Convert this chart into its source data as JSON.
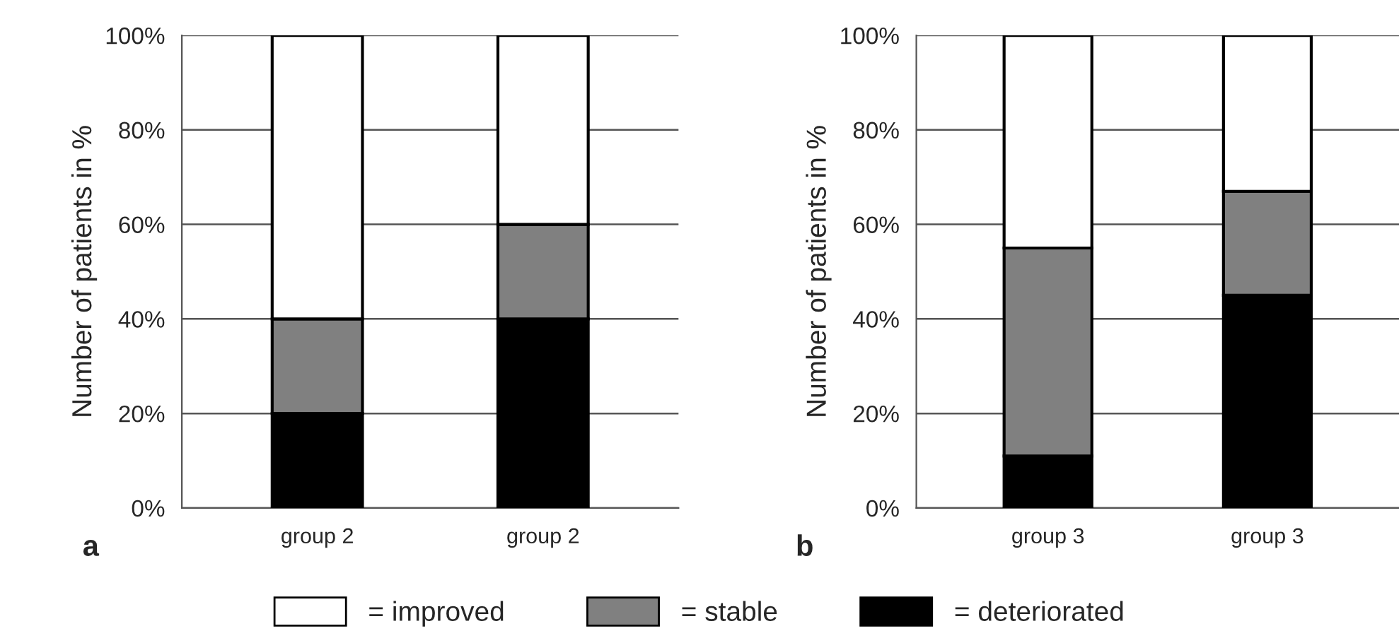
{
  "chart_data": [
    {
      "type": "bar",
      "stacked": true,
      "categories": [
        "group 2",
        "group 2"
      ],
      "ylabel": "Number of patients in %",
      "ylim": [
        0,
        100
      ],
      "yticks": [
        {
          "value": 0,
          "label": "0%"
        },
        {
          "value": 20,
          "label": "20%"
        },
        {
          "value": 40,
          "label": "40%"
        },
        {
          "value": 60,
          "label": "60%"
        },
        {
          "value": 80,
          "label": "80%"
        },
        {
          "value": 100,
          "label": "100%"
        }
      ],
      "grid": "y",
      "annotations": [
        "a"
      ],
      "series": [
        {
          "color": "#000000",
          "values": [
            20,
            40
          ]
        },
        {
          "color": "#808080",
          "values": [
            20,
            20
          ]
        },
        {
          "color": "#ffffff",
          "values": [
            60,
            40
          ]
        }
      ]
    },
    {
      "type": "bar",
      "stacked": true,
      "categories": [
        "group 3",
        "group 3"
      ],
      "ylabel": "Number of patients in %",
      "ylim": [
        0,
        100
      ],
      "yticks": [
        {
          "value": 0,
          "label": "0%"
        },
        {
          "value": 20,
          "label": "20%"
        },
        {
          "value": 40,
          "label": "40%"
        },
        {
          "value": 60,
          "label": "60%"
        },
        {
          "value": 80,
          "label": "80%"
        },
        {
          "value": 100,
          "label": "100%"
        }
      ],
      "grid": "y",
      "legend": "bottom",
      "annotations": [
        "b"
      ],
      "series": [
        {
          "name": "= deteriorated",
          "color": "#000000",
          "values": [
            11,
            45
          ]
        },
        {
          "name": "= stable",
          "color": "#808080",
          "values": [
            44,
            22
          ]
        },
        {
          "name": "= improved",
          "color": "#ffffff",
          "values": [
            45,
            33
          ]
        }
      ]
    }
  ]
}
